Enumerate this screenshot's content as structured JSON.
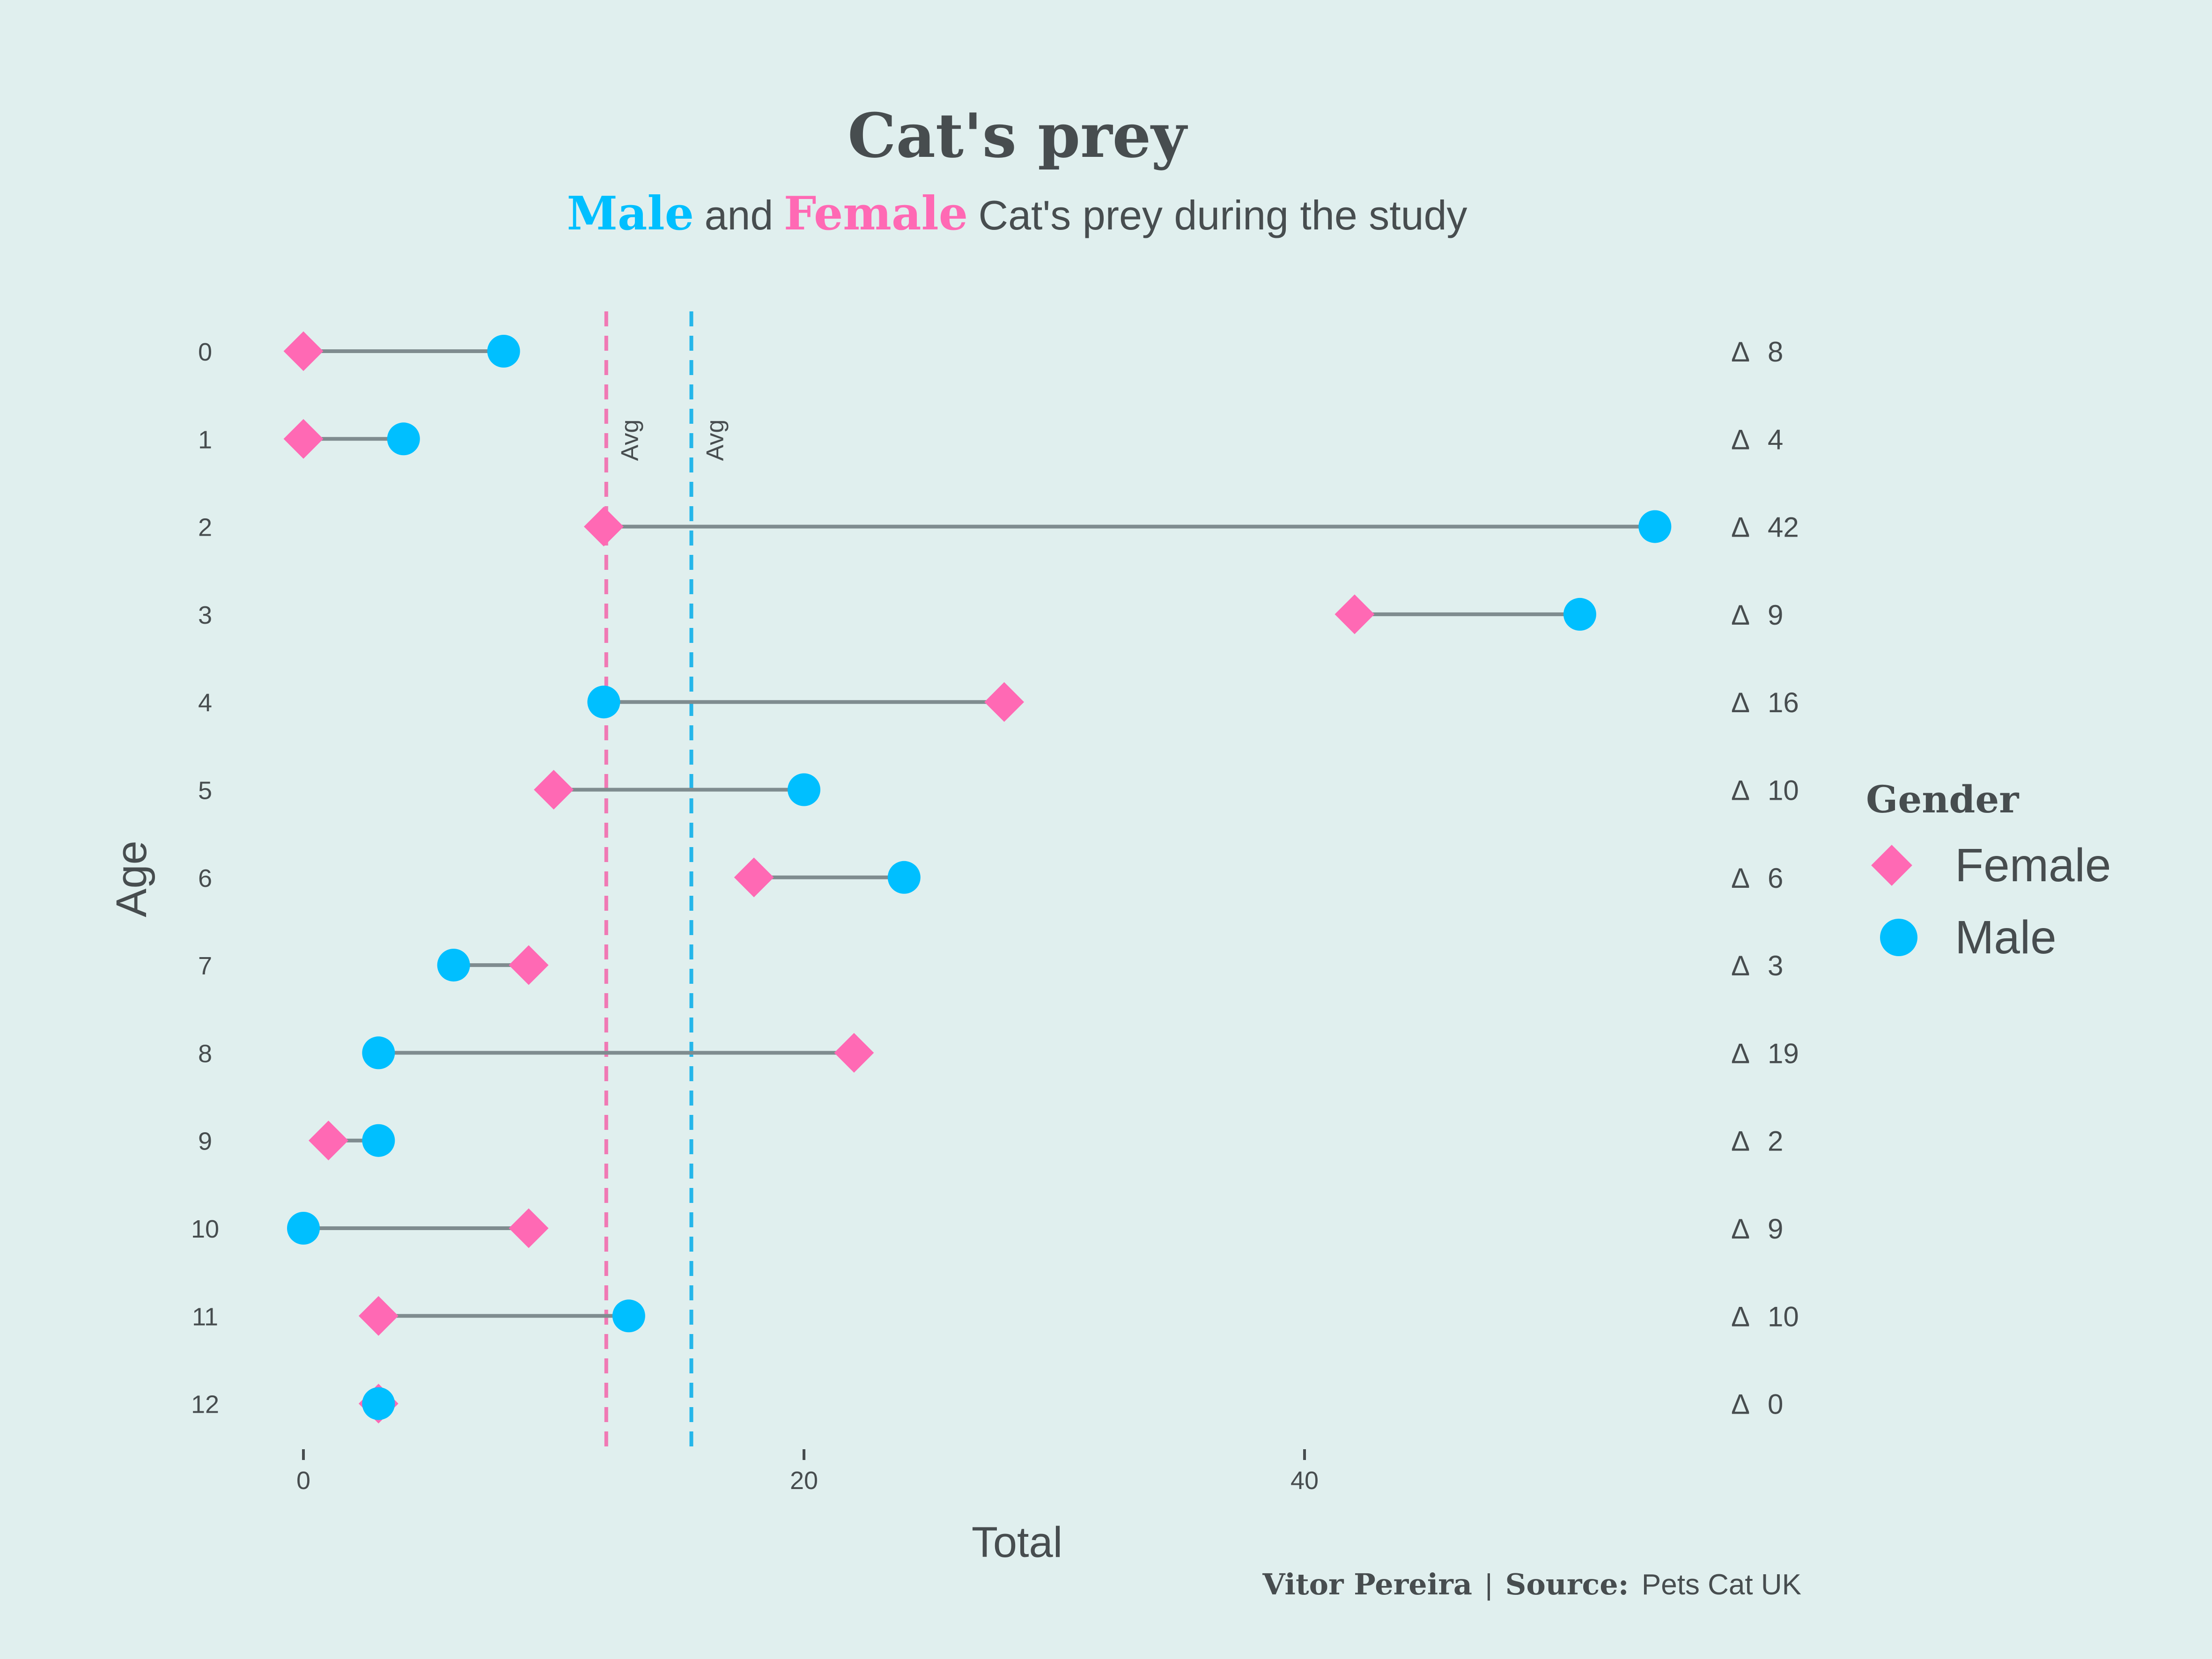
{
  "chart_data": {
    "type": "dumbbell",
    "title": "Cat's prey",
    "subtitle": {
      "male_word": "Male",
      "and_word": "and",
      "female_word": "Female",
      "rest": "Cat's prey during the study"
    },
    "xlabel": "Total",
    "ylabel": "Age",
    "xlim": [
      -4,
      55
    ],
    "xticks": [
      0,
      20,
      40
    ],
    "categories": [
      "0",
      "1",
      "2",
      "3",
      "4",
      "5",
      "6",
      "7",
      "8",
      "9",
      "10",
      "11",
      "12"
    ],
    "series": [
      {
        "name": "Female",
        "marker": "diamond",
        "color": "#ff69b4",
        "values": [
          0,
          0,
          12,
          42,
          28,
          10,
          18,
          9,
          22,
          1,
          9,
          3,
          3
        ]
      },
      {
        "name": "Male",
        "marker": "circle",
        "color": "#00bfff",
        "values": [
          8,
          4,
          54,
          51,
          12,
          20,
          24,
          6,
          3,
          3,
          0,
          13,
          3
        ]
      }
    ],
    "delta_symbol": "Δ",
    "deltas": [
      "8",
      "4",
      "42",
      "9",
      "16",
      "10",
      "6",
      "3",
      "19",
      "2",
      "9",
      "10",
      "0"
    ],
    "averages": [
      {
        "series": "Female",
        "value": 12.1,
        "label": "Avg",
        "color": "#f079b4"
      },
      {
        "series": "Male",
        "value": 15.5,
        "label": "Avg",
        "color": "#24b6ea"
      }
    ],
    "legend": {
      "title": "Gender",
      "position": "right"
    },
    "caption": {
      "author": "Vitor Pereira",
      "separator": "|",
      "source_label": "Source:",
      "source": "Pets Cat UK"
    },
    "colors": {
      "background": "#e0efee",
      "text": "#474d4f",
      "segment": "#7f8c8f"
    }
  }
}
